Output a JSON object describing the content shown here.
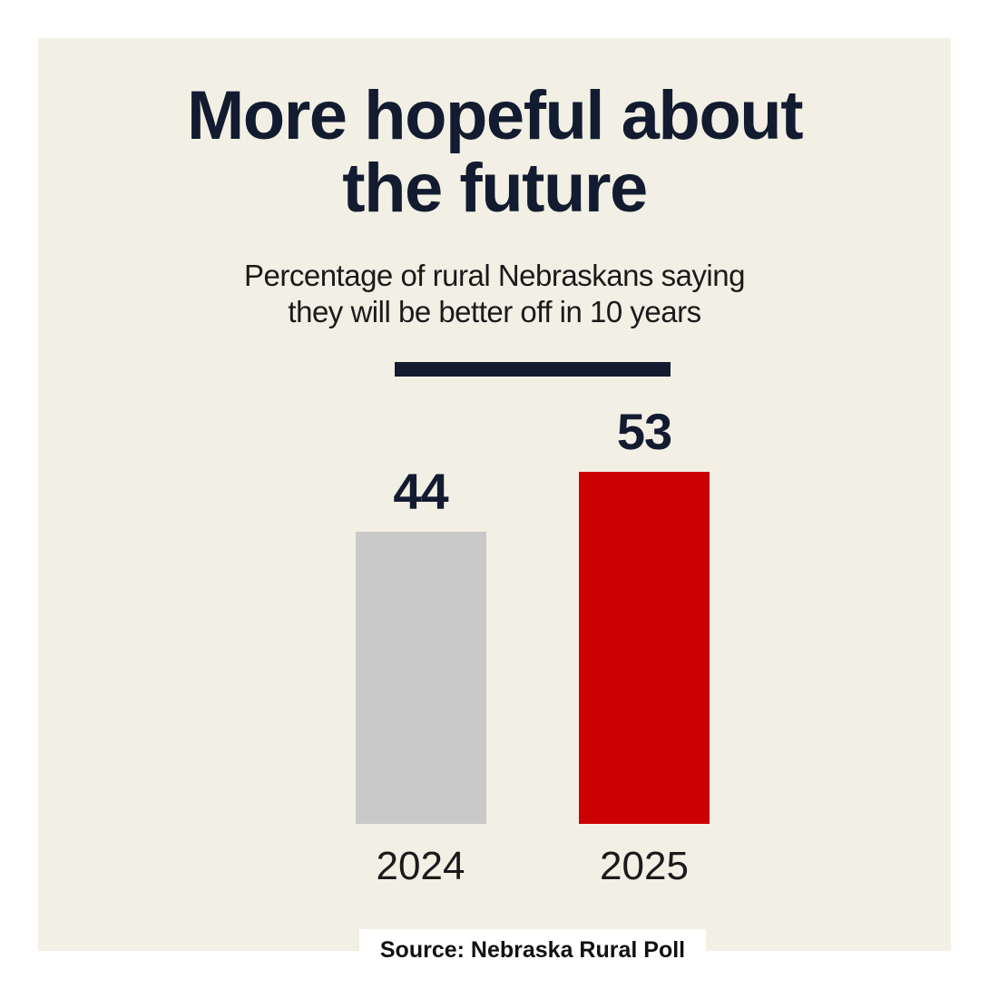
{
  "header": {
    "title_line1": "More hopeful about",
    "title_line2": "the future",
    "subtitle_line1": "Percentage of rural Nebraskans saying",
    "subtitle_line2": "they will be better off in 10 years"
  },
  "footer": {
    "source": "Source: Nebraska Rural Poll"
  },
  "colors": {
    "page_background": "#ffffff",
    "panel_background": "#f2efe4",
    "navy": "#131b30",
    "text_black": "#1a1a1a",
    "bar_gray": "#c9c9c9",
    "bar_red": "#cc0000",
    "source_box_background": "#ffffff"
  },
  "chart_data": {
    "type": "bar",
    "title": "More hopeful about the future",
    "subtitle": "Percentage of rural Nebraskans saying they will be better off in 10 years",
    "categories": [
      "2024",
      "2025"
    ],
    "values": [
      44,
      53
    ],
    "value_labels": [
      "44",
      "53"
    ],
    "bar_colors": [
      "#c9c9c9",
      "#cc0000"
    ],
    "ylim": [
      0,
      60
    ],
    "grid": false,
    "legend": false,
    "axis_lines": false,
    "source": "Source: Nebraska Rural Poll"
  }
}
